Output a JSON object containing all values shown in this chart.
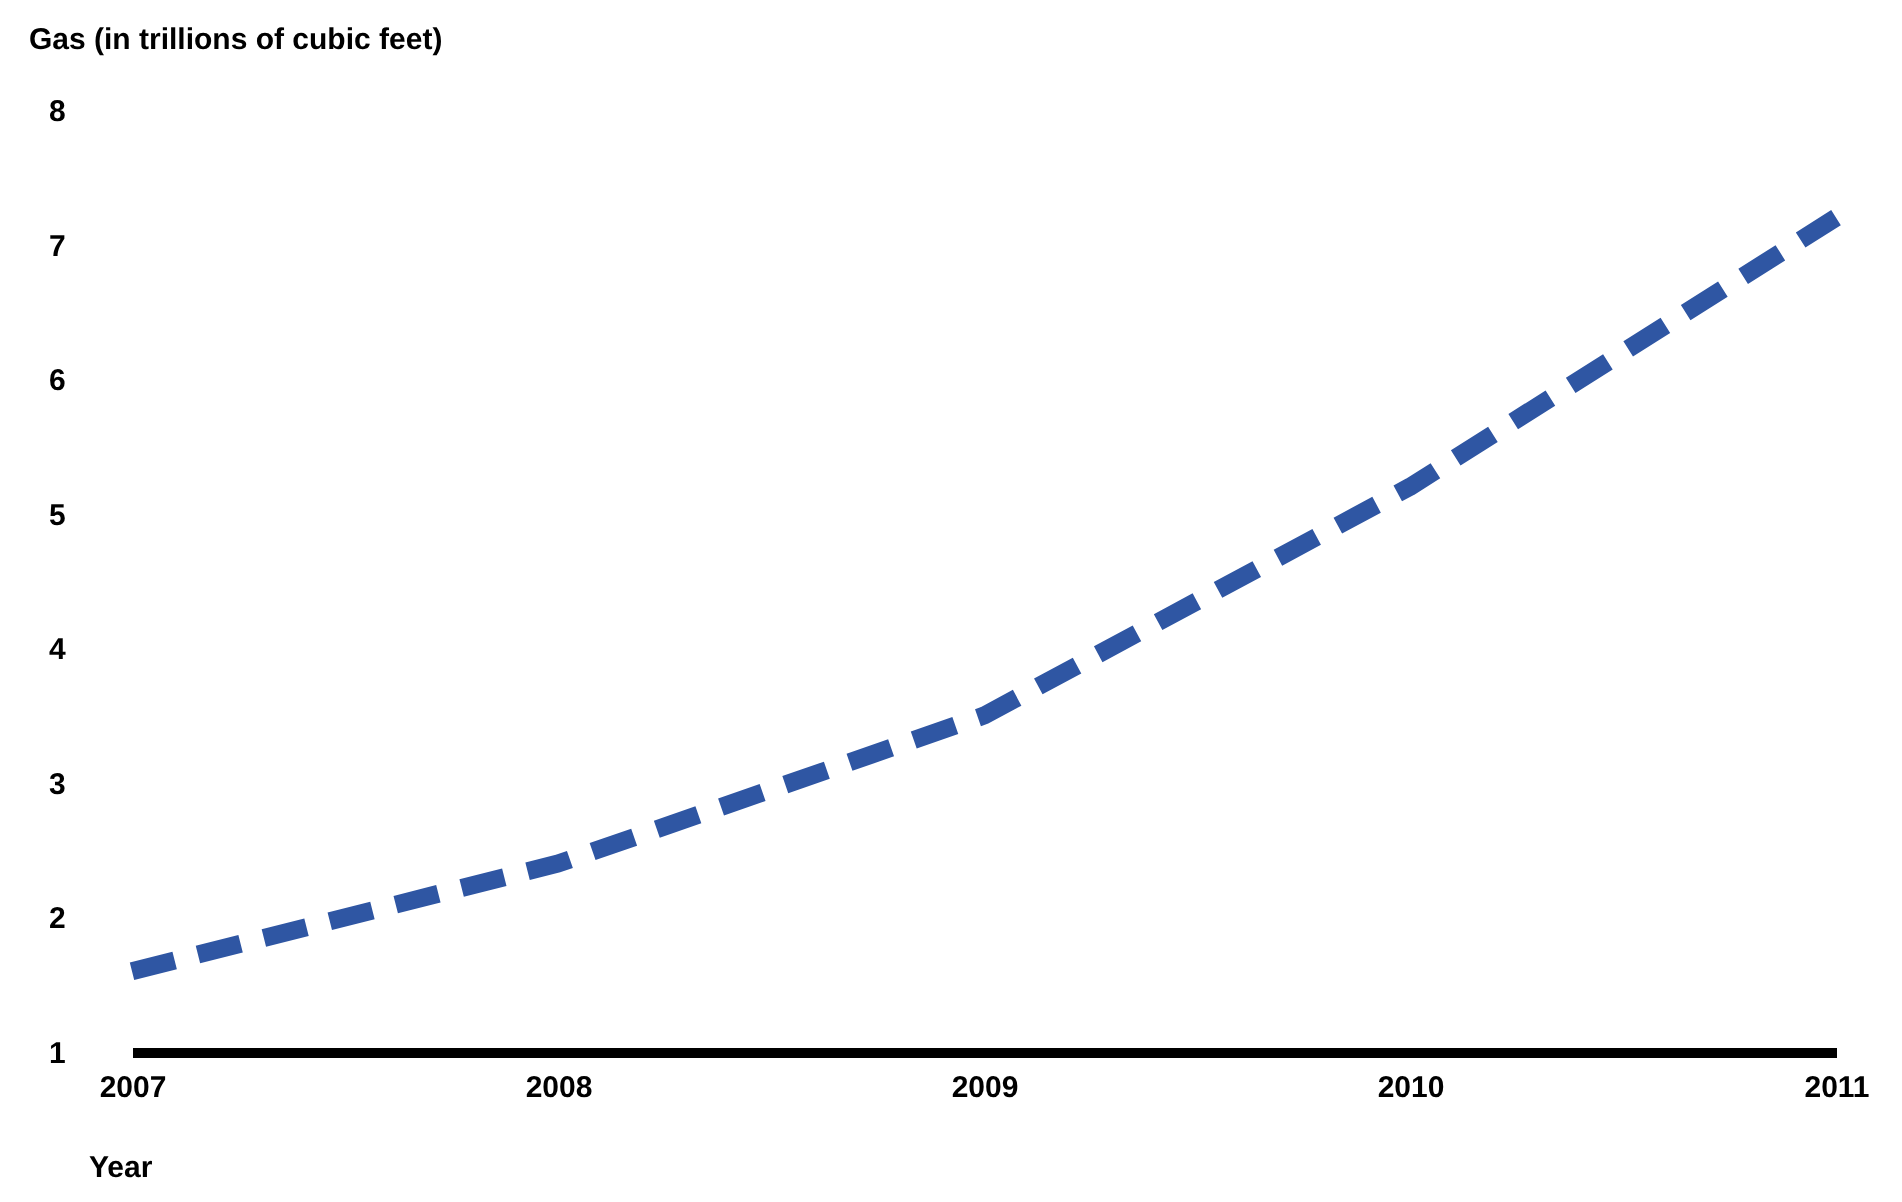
{
  "chart_data": {
    "type": "line",
    "xlabel": "Year",
    "ylabel": "Gas (in trillions of cubic feet)",
    "x": [
      2007,
      2008,
      2009,
      2010,
      2011
    ],
    "series": [
      {
        "color": "#2f56a3",
        "values": [
          1.6,
          2.4,
          3.5,
          5.2,
          7.2
        ]
      }
    ],
    "xlim": [
      2007,
      2011
    ],
    "xticks": [
      2007,
      2008,
      2009,
      2010,
      2011
    ],
    "ylim": [
      1,
      8
    ],
    "yticks": [
      1,
      2,
      3,
      4,
      5,
      6,
      7,
      8
    ],
    "grid": false,
    "legend": false,
    "line_style": "dashed",
    "marker": "none"
  }
}
